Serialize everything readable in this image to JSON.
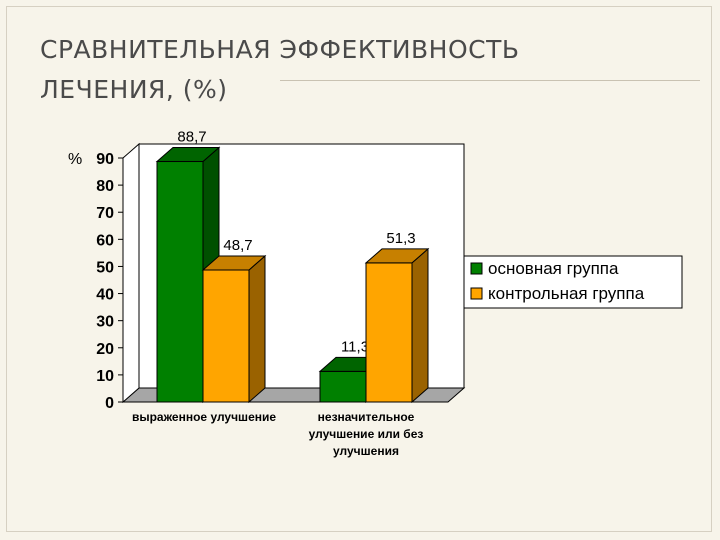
{
  "slide": {
    "title_line1": "СРАВНИТЕЛЬНАЯ ЭФФЕКТИВНОСТЬ",
    "title_line2": "ЛЕЧЕНИЯ, (%)"
  },
  "chart_data": {
    "type": "bar",
    "title": "",
    "ylabel": "%",
    "xlabel": "",
    "ylim": [
      0,
      90
    ],
    "y_ticks": [
      "0",
      "10",
      "20",
      "30",
      "40",
      "50",
      "60",
      "70",
      "80",
      "90"
    ],
    "categories": [
      [
        "выраженное улучшение"
      ],
      [
        "незначительное",
        "улучшение или без",
        "улучшения"
      ]
    ],
    "series": [
      {
        "name": "основная группа",
        "values": [
          88.7,
          11.3
        ],
        "labels": [
          "88,7",
          "11,3"
        ],
        "color": "#008000",
        "side": "#005000",
        "top": "#006400"
      },
      {
        "name": "контрольная группа",
        "values": [
          48.7,
          51.3
        ],
        "labels": [
          "48,7",
          "51,3"
        ],
        "color": "#ffa500",
        "side": "#9a6200",
        "top": "#c78000"
      }
    ],
    "legend_position": "right",
    "grid": false,
    "three_d": true
  }
}
